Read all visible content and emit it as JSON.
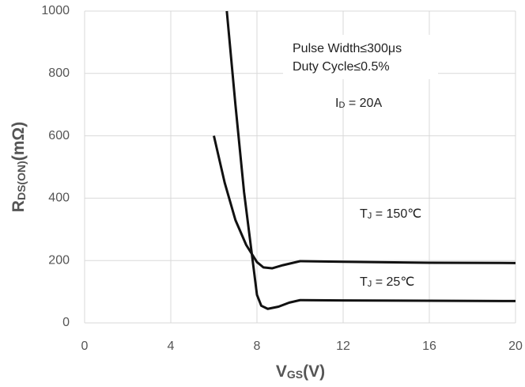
{
  "chart_data": {
    "type": "line",
    "xlabel": {
      "main": "V",
      "sub": "GS",
      "rest": "(V)"
    },
    "ylabel": {
      "main": "R",
      "sub": "DS(ON)",
      "rest": "(mΩ)"
    },
    "xlim": [
      0,
      20
    ],
    "xticks": [
      0,
      4,
      8,
      12,
      16,
      20
    ],
    "ylim": [
      0,
      1000
    ],
    "yticks": [
      0,
      200,
      400,
      600,
      800,
      1000
    ],
    "grid": true,
    "notes": [
      "Pulse Width≤300μs",
      "Duty Cycle≤0.5%"
    ],
    "current": {
      "main": "I",
      "sub": "D",
      "rest": " = 20A"
    },
    "series": [
      {
        "label": {
          "main": "T",
          "sub": "J",
          "rest": " = 150℃"
        },
        "color": "#111111",
        "x": [
          6.0,
          6.5,
          7.0,
          7.5,
          8.0,
          8.3,
          8.7,
          9.2,
          10,
          12,
          16,
          20
        ],
        "values": [
          600,
          450,
          330,
          250,
          195,
          178,
          175,
          185,
          198,
          196,
          193,
          192
        ]
      },
      {
        "label": {
          "main": "T",
          "sub": "J",
          "rest": " = 25℃"
        },
        "color": "#111111",
        "x": [
          6.6,
          7.0,
          7.4,
          7.8,
          8.0,
          8.2,
          8.5,
          9.0,
          9.5,
          10,
          12,
          16,
          20
        ],
        "values": [
          1000,
          700,
          420,
          200,
          90,
          55,
          45,
          52,
          65,
          73,
          72,
          71,
          70
        ]
      }
    ]
  }
}
